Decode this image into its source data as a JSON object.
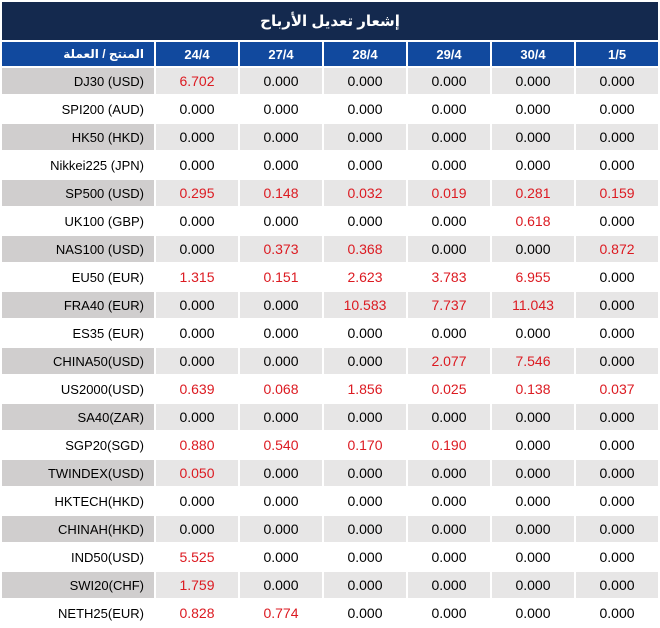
{
  "title": "إشعار تعديل الأرباح",
  "table": {
    "product_header": "المنتج / العملة",
    "date_headers": [
      "24/4",
      "27/4",
      "28/4",
      "29/4",
      "30/4",
      "1/5"
    ],
    "rows": [
      {
        "product": "DJ30 (USD)",
        "values": [
          "6.702",
          "0.000",
          "0.000",
          "0.000",
          "0.000",
          "0.000"
        ],
        "red": [
          true,
          false,
          false,
          false,
          false,
          false
        ]
      },
      {
        "product": "SPI200 (AUD)",
        "values": [
          "0.000",
          "0.000",
          "0.000",
          "0.000",
          "0.000",
          "0.000"
        ],
        "red": [
          false,
          false,
          false,
          false,
          false,
          false
        ]
      },
      {
        "product": "HK50 (HKD)",
        "values": [
          "0.000",
          "0.000",
          "0.000",
          "0.000",
          "0.000",
          "0.000"
        ],
        "red": [
          false,
          false,
          false,
          false,
          false,
          false
        ]
      },
      {
        "product": "Nikkei225 (JPN)",
        "values": [
          "0.000",
          "0.000",
          "0.000",
          "0.000",
          "0.000",
          "0.000"
        ],
        "red": [
          false,
          false,
          false,
          false,
          false,
          false
        ]
      },
      {
        "product": "SP500 (USD)",
        "values": [
          "0.295",
          "0.148",
          "0.032",
          "0.019",
          "0.281",
          "0.159"
        ],
        "red": [
          true,
          true,
          true,
          true,
          true,
          true
        ]
      },
      {
        "product": "UK100 (GBP)",
        "values": [
          "0.000",
          "0.000",
          "0.000",
          "0.000",
          "0.618",
          "0.000"
        ],
        "red": [
          false,
          false,
          false,
          false,
          true,
          false
        ]
      },
      {
        "product": "NAS100 (USD)",
        "values": [
          "0.000",
          "0.373",
          "0.368",
          "0.000",
          "0.000",
          "0.872"
        ],
        "red": [
          false,
          true,
          true,
          false,
          false,
          true
        ]
      },
      {
        "product": "EU50 (EUR)",
        "values": [
          "1.315",
          "0.151",
          "2.623",
          "3.783",
          "6.955",
          "0.000"
        ],
        "red": [
          true,
          true,
          true,
          true,
          true,
          false
        ]
      },
      {
        "product": "FRA40 (EUR)",
        "values": [
          "0.000",
          "0.000",
          "10.583",
          "7.737",
          "11.043",
          "0.000"
        ],
        "red": [
          false,
          false,
          true,
          true,
          true,
          false
        ]
      },
      {
        "product": "ES35 (EUR)",
        "values": [
          "0.000",
          "0.000",
          "0.000",
          "0.000",
          "0.000",
          "0.000"
        ],
        "red": [
          false,
          false,
          false,
          false,
          false,
          false
        ]
      },
      {
        "product": "CHINA50(USD)",
        "values": [
          "0.000",
          "0.000",
          "0.000",
          "2.077",
          "7.546",
          "0.000"
        ],
        "red": [
          false,
          false,
          false,
          true,
          true,
          false
        ]
      },
      {
        "product": "US2000(USD)",
        "values": [
          "0.639",
          "0.068",
          "1.856",
          "0.025",
          "0.138",
          "0.037"
        ],
        "red": [
          true,
          true,
          true,
          true,
          true,
          true
        ]
      },
      {
        "product": "SA40(ZAR)",
        "values": [
          "0.000",
          "0.000",
          "0.000",
          "0.000",
          "0.000",
          "0.000"
        ],
        "red": [
          false,
          false,
          false,
          false,
          false,
          false
        ]
      },
      {
        "product": "SGP20(SGD)",
        "values": [
          "0.880",
          "0.540",
          "0.170",
          "0.190",
          "0.000",
          "0.000"
        ],
        "red": [
          true,
          true,
          true,
          true,
          false,
          false
        ]
      },
      {
        "product": "TWINDEX(USD)",
        "values": [
          "0.050",
          "0.000",
          "0.000",
          "0.000",
          "0.000",
          "0.000"
        ],
        "red": [
          true,
          false,
          false,
          false,
          false,
          false
        ]
      },
      {
        "product": "HKTECH(HKD)",
        "values": [
          "0.000",
          "0.000",
          "0.000",
          "0.000",
          "0.000",
          "0.000"
        ],
        "red": [
          false,
          false,
          false,
          false,
          false,
          false
        ]
      },
      {
        "product": "CHINAH(HKD)",
        "values": [
          "0.000",
          "0.000",
          "0.000",
          "0.000",
          "0.000",
          "0.000"
        ],
        "red": [
          false,
          false,
          false,
          false,
          false,
          false
        ]
      },
      {
        "product": "IND50(USD)",
        "values": [
          "5.525",
          "0.000",
          "0.000",
          "0.000",
          "0.000",
          "0.000"
        ],
        "red": [
          true,
          false,
          false,
          false,
          false,
          false
        ]
      },
      {
        "product": "SWI20(CHF)",
        "values": [
          "1.759",
          "0.000",
          "0.000",
          "0.000",
          "0.000",
          "0.000"
        ],
        "red": [
          true,
          false,
          false,
          false,
          false,
          false
        ]
      },
      {
        "product": "NETH25(EUR)",
        "values": [
          "0.828",
          "0.774",
          "0.000",
          "0.000",
          "0.000",
          "0.000"
        ],
        "red": [
          true,
          true,
          false,
          false,
          false,
          false
        ]
      }
    ]
  },
  "colors": {
    "title_bg": "#14294e",
    "header_bg": "#11499e",
    "header_text": "#ffffff",
    "row_alt_label_bg": "#d0cece",
    "row_alt_value_bg": "#e7e6e6",
    "row_bg": "#ffffff",
    "value_red": "#dc1a21",
    "value_black": "#000000"
  }
}
